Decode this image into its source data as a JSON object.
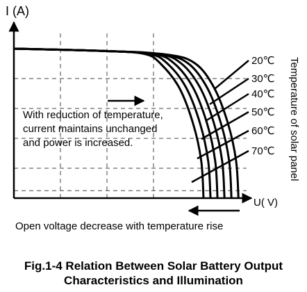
{
  "chart_data": {
    "type": "line",
    "xlabel": "U( V)",
    "ylabel": "I (A)",
    "series": [
      {
        "name": "20℃",
        "points": [
          [
            0,
            1.0
          ],
          [
            0.38,
            0.985
          ],
          [
            0.66,
            0.96
          ],
          [
            0.78,
            0.9
          ],
          [
            0.86,
            0.74
          ],
          [
            0.92,
            0.5
          ],
          [
            0.955,
            0.25
          ],
          [
            0.965,
            0
          ]
        ]
      },
      {
        "name": "30℃",
        "points": [
          [
            0,
            1.0
          ],
          [
            0.38,
            0.985
          ],
          [
            0.64,
            0.96
          ],
          [
            0.75,
            0.9
          ],
          [
            0.83,
            0.74
          ],
          [
            0.89,
            0.5
          ],
          [
            0.925,
            0.25
          ],
          [
            0.935,
            0
          ]
        ]
      },
      {
        "name": "40℃",
        "points": [
          [
            0,
            1.0
          ],
          [
            0.38,
            0.985
          ],
          [
            0.62,
            0.965
          ],
          [
            0.72,
            0.9
          ],
          [
            0.8,
            0.74
          ],
          [
            0.86,
            0.5
          ],
          [
            0.895,
            0.25
          ],
          [
            0.905,
            0
          ]
        ]
      },
      {
        "name": "50℃",
        "points": [
          [
            0,
            1.0
          ],
          [
            0.38,
            0.985
          ],
          [
            0.6,
            0.965
          ],
          [
            0.69,
            0.9
          ],
          [
            0.77,
            0.74
          ],
          [
            0.83,
            0.5
          ],
          [
            0.865,
            0.25
          ],
          [
            0.875,
            0
          ]
        ]
      },
      {
        "name": "60℃",
        "points": [
          [
            0,
            1.0
          ],
          [
            0.38,
            0.985
          ],
          [
            0.58,
            0.965
          ],
          [
            0.66,
            0.9
          ],
          [
            0.74,
            0.74
          ],
          [
            0.8,
            0.5
          ],
          [
            0.835,
            0.25
          ],
          [
            0.845,
            0
          ]
        ]
      },
      {
        "name": "70℃",
        "points": [
          [
            0,
            1.0
          ],
          [
            0.38,
            0.985
          ],
          [
            0.56,
            0.965
          ],
          [
            0.63,
            0.9
          ],
          [
            0.71,
            0.74
          ],
          [
            0.77,
            0.5
          ],
          [
            0.805,
            0.25
          ],
          [
            0.815,
            0
          ]
        ]
      }
    ],
    "legend_title": "Temperature of solar panel",
    "annotations": {
      "inner_text": [
        "With reduction of temperature,",
        "current maintains unchanged",
        "and power is increased."
      ],
      "bottom_text": "Open voltage decrease with temperature rise"
    },
    "grid": "dashed"
  },
  "caption": {
    "line1": "Fig.1-4 Relation Between Solar Battery Output",
    "line2": "Characteristics and Illumination"
  }
}
